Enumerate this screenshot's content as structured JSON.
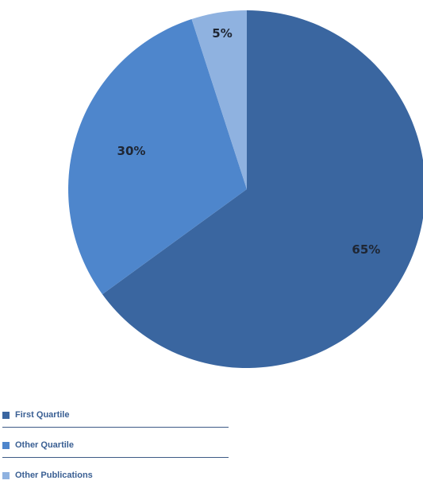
{
  "chart_data": {
    "type": "pie",
    "title": "",
    "categories": [
      "First Quartile",
      "Other Quartile",
      "Other Publications"
    ],
    "values": [
      65,
      30,
      5
    ],
    "value_labels": [
      "65%",
      "30%",
      "5%"
    ],
    "colors": [
      "#3a66a0",
      "#4e86cc",
      "#8fb2e0"
    ],
    "start": "top",
    "direction": "clockwise",
    "legend_placement": "bottom-left"
  },
  "legend": {
    "items": [
      {
        "label": "First Quartile",
        "color": "#3a66a0"
      },
      {
        "label": "Other Quartile",
        "color": "#4e86cc"
      },
      {
        "label": "Other Publications",
        "color": "#8fb2e0"
      }
    ]
  }
}
